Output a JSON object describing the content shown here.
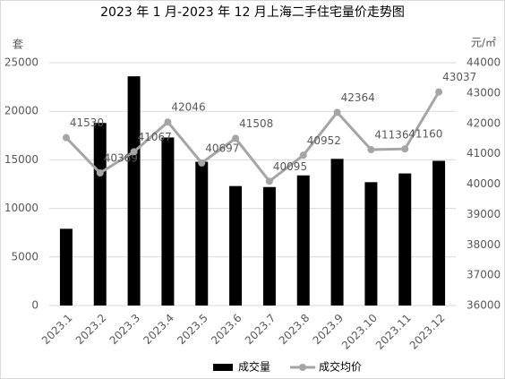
{
  "chart_data": {
    "type": "bar-line",
    "title": "2023 年 1 月-2023 年 12 月上海二手住宅量价走势图",
    "y_label": "套",
    "y2_label": "元/㎡",
    "categories": [
      "2023.1",
      "2023.2",
      "2023.3",
      "2023.4",
      "2023.5",
      "2023.6",
      "2023.7",
      "2023.8",
      "2023.9",
      "2023.10",
      "2023.11",
      "2023.12"
    ],
    "series": [
      {
        "name": "成交量",
        "type": "bar",
        "color": "#000000",
        "axis": "y",
        "values": [
          7900,
          18800,
          23600,
          17300,
          14800,
          12300,
          12200,
          13400,
          15100,
          12700,
          13600,
          14900
        ]
      },
      {
        "name": "成交均价",
        "type": "line",
        "color": "#a5a5a5",
        "axis": "y2",
        "values": [
          41530,
          40369,
          41067,
          42046,
          40697,
          41508,
          40095,
          40952,
          42364,
          41136,
          41160,
          43037
        ]
      }
    ],
    "ylim": [
      0,
      25000
    ],
    "yticks": [
      0,
      5000,
      10000,
      15000,
      20000,
      25000
    ],
    "y2lim": [
      36000,
      44000
    ],
    "y2ticks": [
      36000,
      37000,
      38000,
      39000,
      40000,
      41000,
      42000,
      43000,
      44000
    ],
    "grid": true,
    "legend": "bottom"
  }
}
